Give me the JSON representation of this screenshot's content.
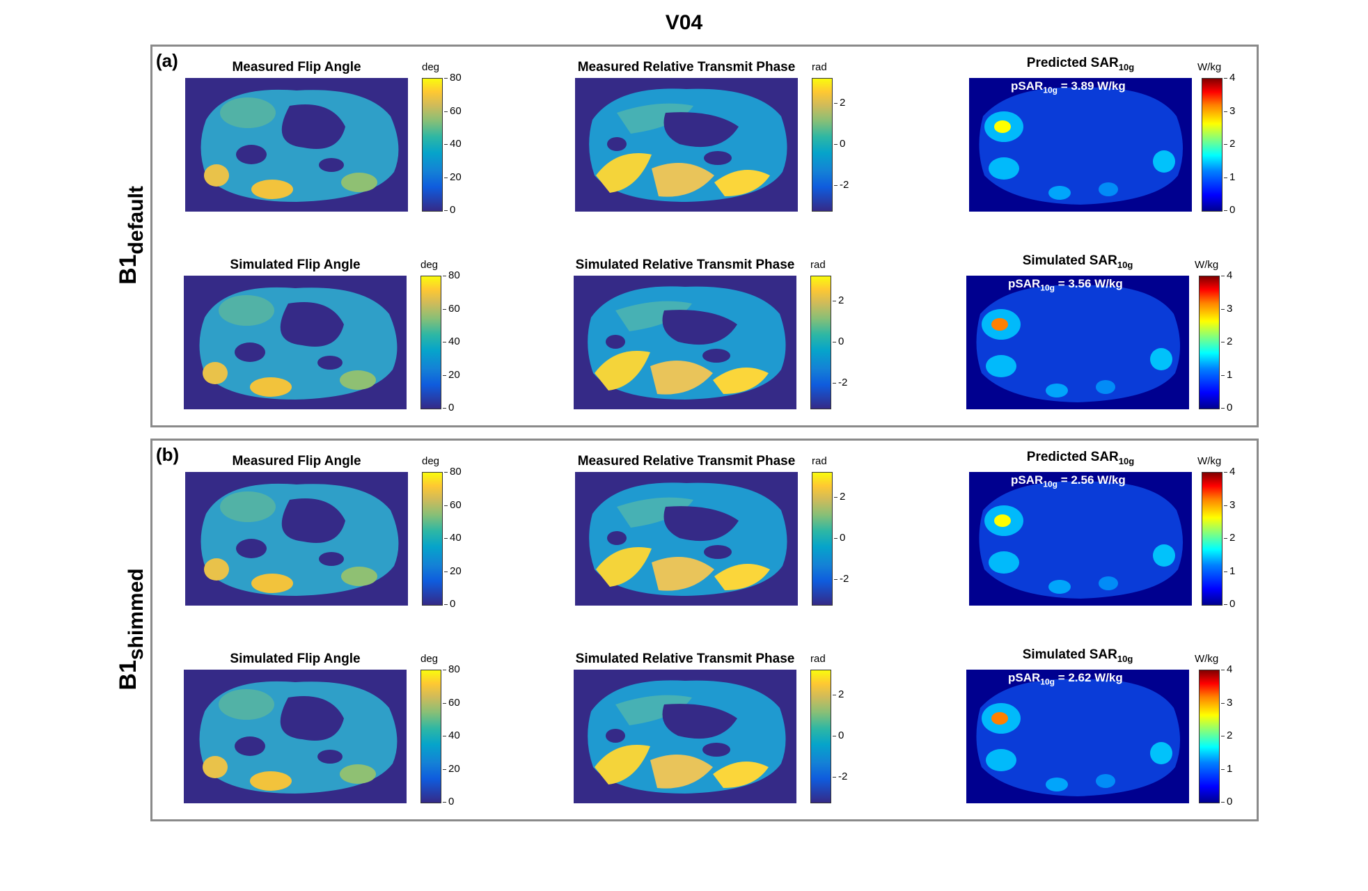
{
  "figure": {
    "title": "V04",
    "panels": [
      {
        "letter": "(a)",
        "row_label_main": "B1",
        "row_label_sub": "default"
      },
      {
        "letter": "(b)",
        "row_label_main": "B1",
        "row_label_sub": "shimmed"
      }
    ]
  },
  "subplots": {
    "a_meas_fa": {
      "title": "Measured Flip Angle",
      "unit": "deg",
      "ticks": [
        "80",
        "60",
        "40",
        "20",
        "0"
      ]
    },
    "a_meas_phase": {
      "title": "Measured Relative Transmit Phase",
      "unit": "rad",
      "ticks": [
        "2",
        "0",
        "-2"
      ]
    },
    "a_pred_sar": {
      "title_main": "Predicted SAR",
      "title_sub": "10g",
      "unit": "W/kg",
      "ticks": [
        "4",
        "3",
        "2",
        "1",
        "0"
      ],
      "annot_main": "pSAR",
      "annot_sub": "10g",
      "annot_val": " = 3.89 W/kg"
    },
    "a_sim_fa": {
      "title": "Simulated Flip Angle",
      "unit": "deg",
      "ticks": [
        "80",
        "60",
        "40",
        "20",
        "0"
      ]
    },
    "a_sim_phase": {
      "title": "Simulated Relative Transmit Phase",
      "unit": "rad",
      "ticks": [
        "2",
        "0",
        "-2"
      ]
    },
    "a_sim_sar": {
      "title_main": "Simulated SAR",
      "title_sub": "10g",
      "unit": "W/kg",
      "ticks": [
        "4",
        "3",
        "2",
        "1",
        "0"
      ],
      "annot_main": "pSAR",
      "annot_sub": "10g",
      "annot_val": " = 3.56 W/kg"
    },
    "b_meas_fa": {
      "title": "Measured  Flip Angle",
      "unit": "deg",
      "ticks": [
        "80",
        "60",
        "40",
        "20",
        "0"
      ]
    },
    "b_meas_phase": {
      "title": "Measured Relative Transmit Phase",
      "unit": "rad",
      "ticks": [
        "2",
        "0",
        "-2"
      ]
    },
    "b_pred_sar": {
      "title_main": "Predicted SAR",
      "title_sub": "10g",
      "unit": "W/kg",
      "ticks": [
        "4",
        "3",
        "2",
        "1",
        "0"
      ],
      "annot_main": "pSAR",
      "annot_sub": "10g",
      "annot_val": " = 2.56 W/kg"
    },
    "b_sim_fa": {
      "title": "Simulated  Flip Angle",
      "unit": "deg",
      "ticks": [
        "80",
        "60",
        "40",
        "20",
        "0"
      ]
    },
    "b_sim_phase": {
      "title": "Simulated Relative Transmit Phase",
      "unit": "rad",
      "ticks": [
        "2",
        "0",
        "-2"
      ]
    },
    "b_sim_sar": {
      "title_main": "Simulated SAR",
      "title_sub": "10g",
      "unit": "W/kg",
      "ticks": [
        "4",
        "3",
        "2",
        "1",
        "0"
      ],
      "annot_main": "pSAR",
      "annot_sub": "10g",
      "annot_val": " = 2.62 W/kg"
    }
  },
  "colors": {
    "parula_background": "#352a87",
    "jet_background": "#00008f"
  }
}
